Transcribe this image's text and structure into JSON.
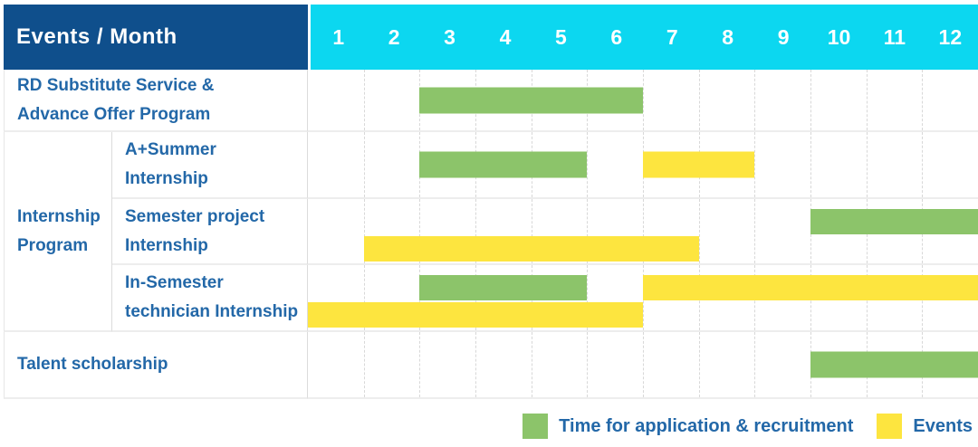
{
  "header": {
    "corner_title": "Events / Month"
  },
  "labels": {
    "rd": [
      "RD Substitute Service &",
      "Advance Offer Program"
    ],
    "group": [
      "Internship",
      "Program"
    ],
    "a_summer": [
      "A+Summer",
      "Internship"
    ],
    "semester": [
      "Semester project",
      "Internship"
    ],
    "in_semester": [
      "In-Semester",
      "technician Internship"
    ],
    "talent": [
      "Talent scholarship"
    ]
  },
  "legend": {
    "items": [
      {
        "key": "recruitment",
        "label": "Time for application & recruitment",
        "color": "#8cc46a"
      },
      {
        "key": "events",
        "label": "Events",
        "color": "#fde53f"
      }
    ]
  },
  "colors": {
    "header_dark_blue": "#0f4f8c",
    "header_cyan": "#0cd7f0",
    "label_text_blue": "#2368a8",
    "bar_green": "#8cc46a",
    "bar_yellow": "#fde53f",
    "grid_line_dashed": "#d8d8d8",
    "row_border": "#ededed"
  },
  "chart_data": {
    "type": "bar",
    "subtype": "gantt-month-timeline",
    "title": "Events / Month",
    "x_axis": {
      "label": "Month",
      "ticks": [
        "1",
        "2",
        "3",
        "4",
        "5",
        "6",
        "7",
        "8",
        "9",
        "10",
        "11",
        "12"
      ],
      "range": [
        1,
        12
      ]
    },
    "grid": true,
    "legend_position": "bottom-right",
    "series_legend": [
      {
        "name": "Time for application & recruitment",
        "color": "#8cc46a"
      },
      {
        "name": "Events",
        "color": "#fde53f"
      }
    ],
    "rows": [
      {
        "group": "",
        "label": "RD Substitute Service & Advance Offer Program",
        "bars": [
          {
            "series": "Time for application & recruitment",
            "start_month": 3,
            "end_month": 6,
            "lane": 0
          }
        ]
      },
      {
        "group": "Internship Program",
        "label": "A+Summer Internship",
        "bars": [
          {
            "series": "Time for application & recruitment",
            "start_month": 3,
            "end_month": 5,
            "lane": 0
          },
          {
            "series": "Events",
            "start_month": 7,
            "end_month": 8,
            "lane": 0
          }
        ]
      },
      {
        "group": "Internship Program",
        "label": "Semester project Internship",
        "bars": [
          {
            "series": "Time for application & recruitment",
            "start_month": 10,
            "end_month": 12,
            "lane": 0
          },
          {
            "series": "Events",
            "start_month": 2,
            "end_month": 7,
            "lane": 1
          }
        ]
      },
      {
        "group": "Internship Program",
        "label": "In-Semester technician Internship",
        "bars": [
          {
            "series": "Time for application & recruitment",
            "start_month": 3,
            "end_month": 5,
            "lane": 0
          },
          {
            "series": "Events",
            "start_month": 7,
            "end_month": 12,
            "lane": 0
          },
          {
            "series": "Events",
            "start_month": 1,
            "end_month": 6,
            "lane": 1
          }
        ]
      },
      {
        "group": "",
        "label": "Talent scholarship",
        "bars": [
          {
            "series": "Time for application & recruitment",
            "start_month": 10,
            "end_month": 12,
            "lane": 0
          }
        ]
      }
    ]
  }
}
